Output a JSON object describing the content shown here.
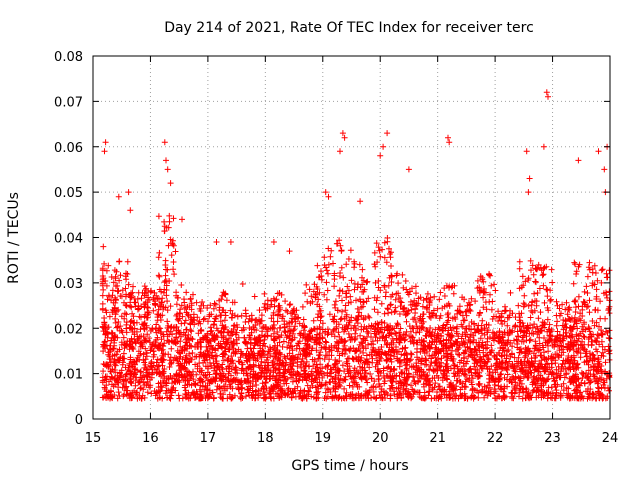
{
  "chart_data": {
    "type": "scatter",
    "title": "Day 214 of 2021, Rate Of TEC Index for receiver terc",
    "xlabel": "GPS time / hours",
    "ylabel": "ROTI / TECUs",
    "xlim": [
      15,
      24
    ],
    "ylim": [
      0,
      0.08
    ],
    "x_ticks": [
      "15",
      "16",
      "17",
      "18",
      "19",
      "20",
      "21",
      "22",
      "23",
      "24"
    ],
    "y_ticks": [
      "0",
      "0.01",
      "0.02",
      "0.03",
      "0.04",
      "0.05",
      "0.06",
      "0.07",
      "0.08"
    ],
    "grid": true,
    "marker": "plus",
    "color": "#ff0000",
    "x_range_of_points": [
      15.17,
      23.99
    ],
    "highlight_points": [
      {
        "x": 15.22,
        "y": 0.061
      },
      {
        "x": 15.2,
        "y": 0.059
      },
      {
        "x": 15.18,
        "y": 0.038
      },
      {
        "x": 15.45,
        "y": 0.049
      },
      {
        "x": 15.62,
        "y": 0.05
      },
      {
        "x": 15.65,
        "y": 0.046
      },
      {
        "x": 16.25,
        "y": 0.061
      },
      {
        "x": 16.27,
        "y": 0.057
      },
      {
        "x": 16.3,
        "y": 0.055
      },
      {
        "x": 16.35,
        "y": 0.052
      },
      {
        "x": 16.55,
        "y": 0.044
      },
      {
        "x": 17.15,
        "y": 0.039
      },
      {
        "x": 17.4,
        "y": 0.039
      },
      {
        "x": 18.15,
        "y": 0.039
      },
      {
        "x": 18.42,
        "y": 0.037
      },
      {
        "x": 19.05,
        "y": 0.05
      },
      {
        "x": 19.1,
        "y": 0.049
      },
      {
        "x": 19.35,
        "y": 0.063
      },
      {
        "x": 19.38,
        "y": 0.062
      },
      {
        "x": 19.3,
        "y": 0.059
      },
      {
        "x": 19.65,
        "y": 0.048
      },
      {
        "x": 20.0,
        "y": 0.058
      },
      {
        "x": 20.05,
        "y": 0.06
      },
      {
        "x": 20.12,
        "y": 0.063
      },
      {
        "x": 20.5,
        "y": 0.055
      },
      {
        "x": 21.18,
        "y": 0.062
      },
      {
        "x": 21.2,
        "y": 0.061
      },
      {
        "x": 22.55,
        "y": 0.059
      },
      {
        "x": 22.6,
        "y": 0.053
      },
      {
        "x": 22.58,
        "y": 0.05
      },
      {
        "x": 22.85,
        "y": 0.06
      },
      {
        "x": 22.9,
        "y": 0.072
      },
      {
        "x": 22.92,
        "y": 0.071
      },
      {
        "x": 23.45,
        "y": 0.057
      },
      {
        "x": 23.8,
        "y": 0.059
      },
      {
        "x": 23.95,
        "y": 0.06
      },
      {
        "x": 23.9,
        "y": 0.055
      },
      {
        "x": 23.92,
        "y": 0.05
      }
    ]
  }
}
